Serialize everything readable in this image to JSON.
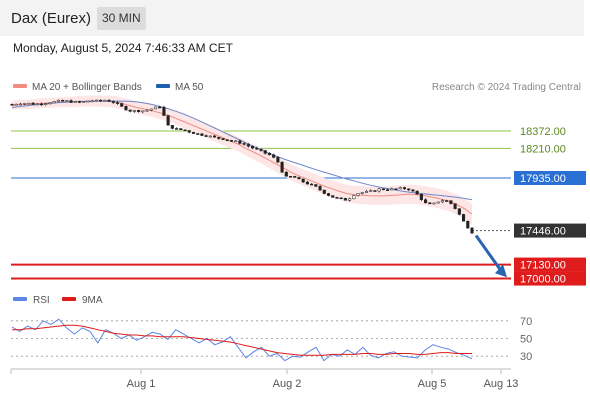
{
  "header": {
    "title": "Dax (Eurex)",
    "interval": "30 MIN"
  },
  "datetime": "Monday, August 5, 2024 7:46:33 AM CET",
  "legend": {
    "bollinger": "MA 20 + Bollinger Bands",
    "ma50": "MA 50",
    "rsi": "RSI",
    "rsi_ma": "9MA"
  },
  "credit": "Research © 2024 Trading Central",
  "colors": {
    "bollinger": "#f28b82",
    "band_fill": "#fde6e6",
    "ma50": "#1f5fad",
    "ma50_line": "#6f86c9",
    "resistance": "#8bc34a",
    "pivot": "#2a6fd4",
    "support": "#e01b1b",
    "current": "#333333",
    "arrow": "#2a63b0",
    "rsi": "#5b86e5",
    "rsi_ma": "#e01b1b",
    "candle_up": "#ffffff",
    "candle_down": "#222222"
  },
  "chart_data": [
    {
      "type": "line",
      "title": "Dax (Eurex) 30 MIN",
      "x_ticks": [
        "Aug 1",
        "Aug 2",
        "Aug 5",
        "Aug 13"
      ],
      "y_range": [
        16940,
        18660
      ],
      "price_path": [
        18620,
        18630,
        18630,
        18620,
        18630,
        18640,
        18650,
        18650,
        18640,
        18640,
        18655,
        18650,
        18660,
        18640,
        18600,
        18560,
        18560,
        18560,
        18580,
        18600,
        18420,
        18390,
        18380,
        18360,
        18340,
        18330,
        18310,
        18300,
        18280,
        18270,
        18240,
        18210,
        18180,
        18150,
        18100,
        17940,
        17950,
        17910,
        17880,
        17850,
        17800,
        17760,
        17740,
        17730,
        17790,
        17800,
        17810,
        17830,
        17830,
        17830,
        17840,
        17830,
        17780,
        17700,
        17690,
        17730,
        17720,
        17640,
        17520,
        17430
      ],
      "series": [
        {
          "name": "MA 20 + Bollinger Bands",
          "values": [
            18610,
            18620,
            18620,
            18625,
            18630,
            18635,
            18640,
            18642,
            18645,
            18648,
            18650,
            18650,
            18648,
            18645,
            18630,
            18610,
            18590,
            18575,
            18560,
            18540,
            18520,
            18490,
            18460,
            18430,
            18400,
            18370,
            18340,
            18310,
            18280,
            18250,
            18210,
            18175,
            18140,
            18100,
            18060,
            18020,
            17980,
            17950,
            17920,
            17890,
            17860,
            17835,
            17810,
            17790,
            17780,
            17775,
            17770,
            17768,
            17770,
            17775,
            17780,
            17785,
            17780,
            17770,
            17755,
            17740,
            17720,
            17690,
            17650,
            17600
          ]
        },
        {
          "name": "MA 50",
          "values": [
            18590,
            18600,
            18608,
            18615,
            18622,
            18630,
            18636,
            18640,
            18643,
            18646,
            18648,
            18650,
            18650,
            18650,
            18650,
            18648,
            18642,
            18632,
            18618,
            18600,
            18580,
            18556,
            18530,
            18500,
            18468,
            18434,
            18400,
            18365,
            18330,
            18296,
            18262,
            18228,
            18195,
            18164,
            18135,
            18108,
            18084,
            18060,
            18036,
            18012,
            17990,
            17968,
            17946,
            17925,
            17905,
            17886,
            17868,
            17852,
            17838,
            17825,
            17813,
            17803,
            17795,
            17787,
            17780,
            17772,
            17764,
            17755,
            17745,
            17733
          ]
        }
      ],
      "levels": [
        {
          "label": "18372.00",
          "value": 18372.0,
          "kind": "resistance"
        },
        {
          "label": "18210.00",
          "value": 18210.0,
          "kind": "resistance"
        },
        {
          "label": "17935.00",
          "value": 17935.0,
          "kind": "pivot"
        },
        {
          "label": "17446.00",
          "value": 17446.0,
          "kind": "current"
        },
        {
          "label": "17130.00",
          "value": 17130.0,
          "kind": "support"
        },
        {
          "label": "17000.00",
          "value": 17000.0,
          "kind": "support"
        }
      ]
    },
    {
      "type": "line",
      "title": "RSI",
      "y_ticks": [
        70,
        50,
        30
      ],
      "y_range": [
        20,
        80
      ],
      "series": [
        {
          "name": "RSI",
          "values": [
            63,
            58,
            64,
            60,
            70,
            66,
            72,
            62,
            55,
            62,
            58,
            45,
            60,
            56,
            50,
            54,
            48,
            52,
            57,
            55,
            49,
            60,
            55,
            50,
            45,
            50,
            43,
            46,
            52,
            40,
            28,
            35,
            40,
            30,
            33,
            25,
            30,
            29,
            35,
            40,
            25,
            32,
            30,
            37,
            32,
            40,
            31,
            28,
            33,
            35,
            30,
            29,
            28,
            37,
            43,
            40,
            38,
            34,
            31,
            27
          ]
        },
        {
          "name": "9MA",
          "values": [
            60,
            60,
            61,
            61,
            62,
            63,
            64,
            65,
            65,
            64,
            62,
            60,
            58,
            56,
            55,
            54,
            54,
            53,
            53,
            52,
            52,
            52,
            52,
            51,
            50,
            49,
            48,
            47,
            46,
            44,
            42,
            40,
            38,
            36,
            34,
            33,
            32,
            31,
            31,
            31,
            31,
            32,
            32,
            32,
            32,
            33,
            33,
            32,
            32,
            33,
            33,
            33,
            32,
            32,
            33,
            34,
            34,
            33,
            33,
            33
          ]
        }
      ]
    }
  ]
}
